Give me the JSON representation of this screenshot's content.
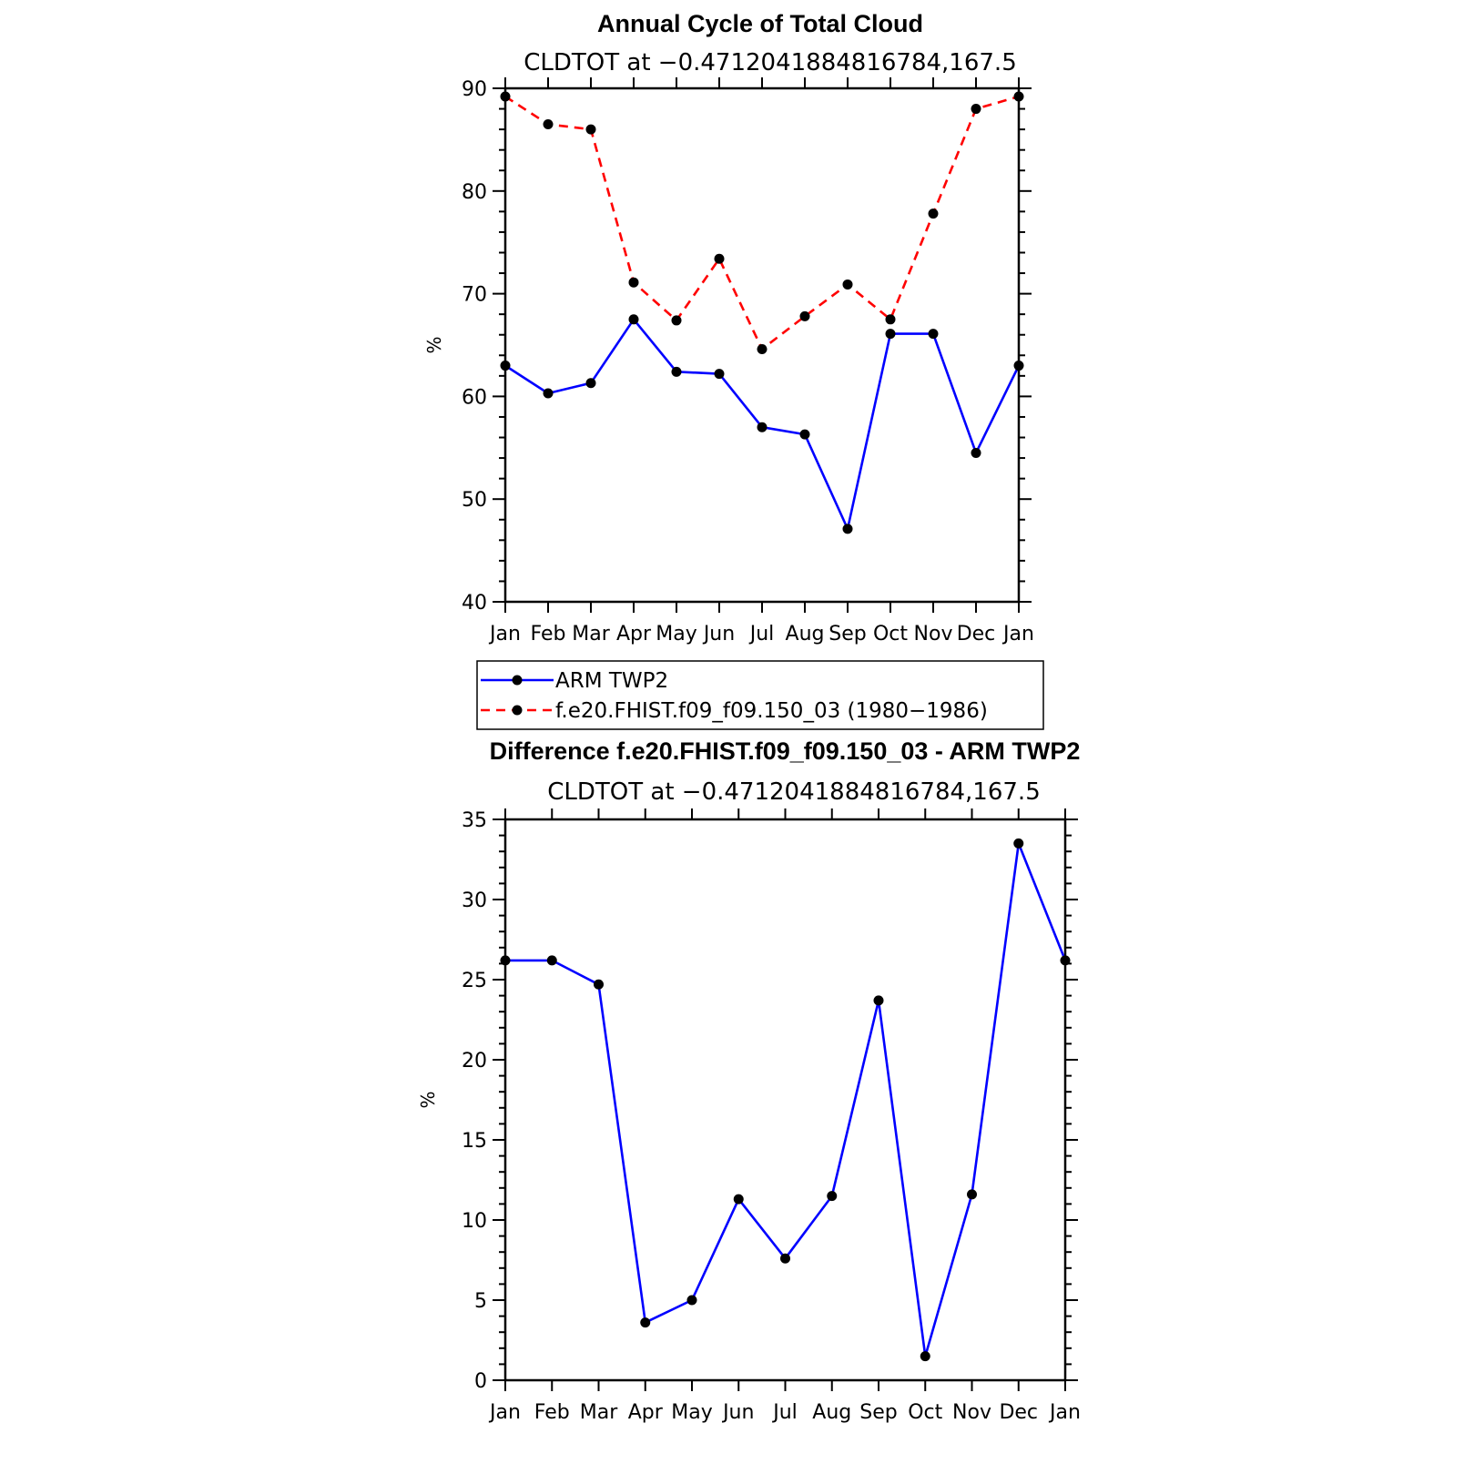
{
  "chart_data": [
    {
      "type": "line",
      "title": "Annual Cycle of Total Cloud",
      "subtitle": "CLDTOT at −0.4712041884816784,167.5",
      "ylabel": "%",
      "xlabel": "",
      "ylim": [
        40,
        90
      ],
      "yticks": [
        40,
        50,
        60,
        70,
        80,
        90
      ],
      "categories": [
        "Jan",
        "Feb",
        "Mar",
        "Apr",
        "May",
        "Jun",
        "Jul",
        "Aug",
        "Sep",
        "Oct",
        "Nov",
        "Dec",
        "Jan"
      ],
      "series": [
        {
          "name": "ARM TWP2",
          "color": "#0000ff",
          "dash": "solid",
          "values": [
            63.0,
            60.3,
            61.3,
            67.5,
            62.4,
            62.2,
            57.0,
            56.3,
            47.1,
            66.1,
            66.1,
            54.5,
            63.0
          ]
        },
        {
          "name": "f.e20.FHIST.f09_f09.150_03 (1980−1986)",
          "color": "#ff0000",
          "dash": "dashed",
          "values": [
            89.2,
            86.5,
            86.0,
            71.1,
            67.4,
            73.4,
            64.6,
            67.8,
            70.9,
            67.5,
            77.8,
            88.0,
            89.2
          ]
        }
      ],
      "legend": "below"
    },
    {
      "type": "line",
      "title": "Difference f.e20.FHIST.f09_f09.150_03 - ARM TWP2",
      "subtitle": "CLDTOT at −0.4712041884816784,167.5",
      "ylabel": "%",
      "xlabel": "",
      "ylim": [
        0,
        35
      ],
      "yticks": [
        0,
        5,
        10,
        15,
        20,
        25,
        30,
        35
      ],
      "categories": [
        "Jan",
        "Feb",
        "Mar",
        "Apr",
        "May",
        "Jun",
        "Jul",
        "Aug",
        "Sep",
        "Oct",
        "Nov",
        "Dec",
        "Jan"
      ],
      "series": [
        {
          "color": "#0000ff",
          "dash": "solid",
          "values": [
            26.2,
            26.2,
            24.7,
            3.6,
            5.0,
            11.3,
            7.6,
            11.5,
            23.7,
            1.5,
            11.6,
            33.5,
            26.2
          ]
        }
      ]
    }
  ]
}
